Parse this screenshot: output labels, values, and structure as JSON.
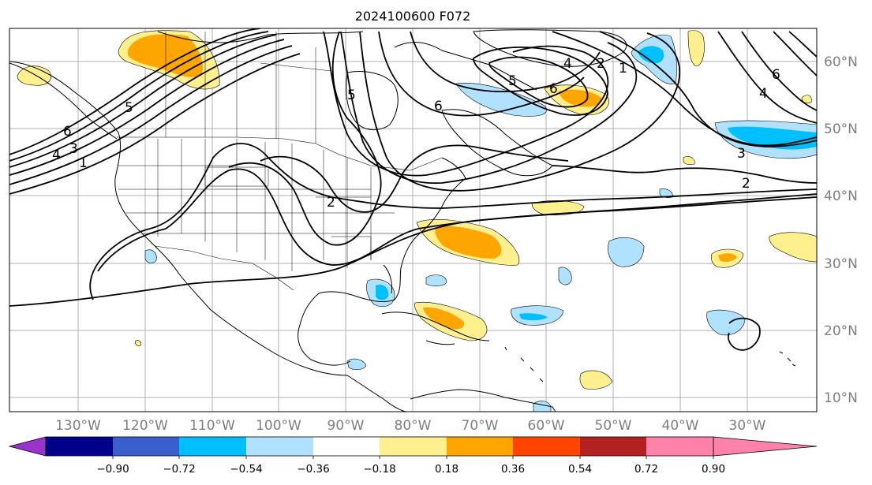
{
  "title": "2024100600 F072",
  "lat_labels": [
    "60°N",
    "50°N",
    "40°N",
    "30°N",
    "20°N",
    "10°N"
  ],
  "lon_labels": [
    "130°W",
    "120°W",
    "110°W",
    "100°W",
    "90°W",
    "80°W",
    "70°W",
    "60°W",
    "50°W",
    "40°W",
    "30°W"
  ],
  "colorbar": {
    "colors": [
      "#9933cc",
      "#00008b",
      "#3a5fcd",
      "#00bfff",
      "#b0e2ff",
      "#ffffff",
      "#fff08f",
      "#ffa500",
      "#ff4500",
      "#b22222",
      "#ff82ab"
    ],
    "tick_labels": [
      "−0.90",
      "−0.72",
      "−0.54",
      "−0.36",
      "−0.18",
      "0.18",
      "0.36",
      "0.54",
      "0.72",
      "0.90"
    ]
  },
  "contour_labels": [
    "5",
    "6",
    "4",
    "3",
    "1",
    "2",
    "5",
    "6",
    "4",
    "2",
    "1",
    "5",
    "6",
    "3",
    "2",
    "6",
    "4"
  ]
}
